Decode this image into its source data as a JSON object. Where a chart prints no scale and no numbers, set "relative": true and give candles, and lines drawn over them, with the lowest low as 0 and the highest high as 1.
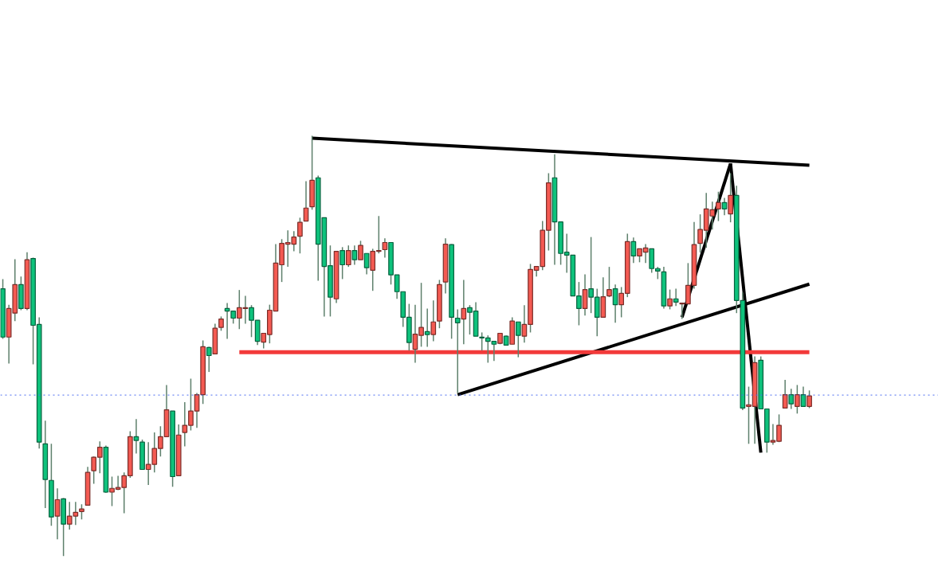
{
  "chart_data": {
    "type": "candlestick",
    "relative": true,
    "grid": false,
    "categories": [
      null,
      null,
      null,
      null,
      null,
      null,
      null,
      null,
      null,
      null,
      null,
      null,
      null,
      null,
      null,
      null,
      null,
      null,
      null,
      null,
      null,
      null,
      null,
      null,
      null,
      null,
      null,
      null,
      null,
      null,
      null,
      null,
      null,
      null,
      null,
      null,
      null,
      null,
      null,
      null,
      null,
      null,
      null,
      null,
      null,
      null,
      null,
      null,
      null,
      null,
      null,
      null,
      null,
      null,
      null,
      null,
      null,
      null,
      null,
      null,
      null,
      null,
      null,
      null,
      null,
      null,
      null,
      null,
      null,
      null,
      null,
      null,
      null,
      null,
      null,
      null,
      null,
      null,
      null,
      null,
      null,
      null,
      null,
      null,
      null,
      null,
      null,
      null,
      null,
      null,
      null,
      null,
      null,
      null,
      null,
      null,
      null,
      null,
      null,
      null,
      null,
      null,
      null,
      null,
      null,
      null,
      null,
      null,
      null,
      null,
      null,
      null,
      null,
      null,
      null,
      null,
      null,
      null,
      null,
      null,
      null,
      null,
      null,
      null,
      null,
      null,
      null,
      null,
      null,
      null,
      null,
      null,
      null,
      null
    ],
    "ohlc": [
      [
        0.636,
        0.659,
        0.517,
        0.521
      ],
      [
        0.521,
        0.598,
        0.458,
        0.589
      ],
      [
        0.578,
        0.706,
        0.559,
        0.646
      ],
      [
        0.646,
        0.665,
        0.585,
        0.589
      ],
      [
        0.589,
        0.723,
        0.585,
        0.705
      ],
      [
        0.708,
        0.71,
        0.456,
        0.549
      ],
      [
        0.551,
        0.568,
        0.256,
        0.271
      ],
      [
        0.267,
        0.322,
        0.114,
        0.182
      ],
      [
        0.18,
        0.267,
        0.072,
        0.093
      ],
      [
        0.095,
        0.161,
        0.04,
        0.134
      ],
      [
        0.136,
        0.138,
        0,
        0.076
      ],
      [
        0.076,
        0.129,
        0.063,
        0.095
      ],
      [
        0.095,
        0.129,
        0.074,
        0.104
      ],
      [
        0.106,
        0.123,
        0.087,
        0.112
      ],
      [
        0.121,
        0.212,
        0.121,
        0.199
      ],
      [
        0.203,
        0.237,
        0.172,
        0.235
      ],
      [
        0.235,
        0.273,
        0.197,
        0.259
      ],
      [
        0.259,
        0.263,
        0.15,
        0.152
      ],
      [
        0.152,
        0.189,
        0.119,
        0.161
      ],
      [
        0.159,
        0.191,
        0.157,
        0.163
      ],
      [
        0.163,
        0.199,
        0.102,
        0.191
      ],
      [
        0.191,
        0.297,
        0.186,
        0.284
      ],
      [
        0.284,
        0.326,
        0.244,
        0.275
      ],
      [
        0.271,
        0.277,
        0.205,
        0.206
      ],
      [
        0.206,
        0.271,
        0.169,
        0.218
      ],
      [
        0.218,
        0.294,
        0.199,
        0.256
      ],
      [
        0.256,
        0.309,
        0.237,
        0.284
      ],
      [
        0.284,
        0.407,
        0.284,
        0.348
      ],
      [
        0.345,
        0.345,
        0.165,
        0.189
      ],
      [
        0.191,
        0.313,
        0.191,
        0.288
      ],
      [
        0.294,
        0.366,
        0.261,
        0.311
      ],
      [
        0.311,
        0.422,
        0.299,
        0.345
      ],
      [
        0.345,
        0.388,
        0.305,
        0.384
      ],
      [
        0.384,
        0.513,
        0.362,
        0.498
      ],
      [
        0.496,
        0.498,
        0.438,
        0.477
      ],
      [
        0.481,
        0.553,
        0.481,
        0.542
      ],
      [
        0.544,
        0.57,
        0.536,
        0.564
      ],
      [
        0.589,
        0.602,
        0.517,
        0.583
      ],
      [
        0.583,
        0.583,
        0.553,
        0.566
      ],
      [
        0.566,
        0.633,
        0.54,
        0.591
      ],
      [
        0.589,
        0.619,
        0.553,
        0.591
      ],
      [
        0.591,
        0.597,
        0.521,
        0.561
      ],
      [
        0.561,
        0.561,
        0.502,
        0.511
      ],
      [
        0.509,
        0.53,
        0.494,
        0.53
      ],
      [
        0.527,
        0.598,
        0.506,
        0.585
      ],
      [
        0.583,
        0.742,
        0.583,
        0.697
      ],
      [
        0.693,
        0.754,
        0.652,
        0.744
      ],
      [
        0.742,
        0.775,
        0.688,
        0.746
      ],
      [
        0.742,
        0.773,
        0.725,
        0.759
      ],
      [
        0.761,
        0.805,
        0.72,
        0.794
      ],
      [
        0.797,
        0.892,
        0.797,
        0.828
      ],
      [
        0.831,
        1,
        0.824,
        0.894
      ],
      [
        0.9,
        0.905,
        0.655,
        0.742
      ],
      [
        0.805,
        0.805,
        0.57,
        0.689
      ],
      [
        0.691,
        0.739,
        0.57,
        0.616
      ],
      [
        0.612,
        0.725,
        0.602,
        0.725
      ],
      [
        0.727,
        0.735,
        0.659,
        0.693
      ],
      [
        0.693,
        0.739,
        0.688,
        0.727
      ],
      [
        0.727,
        0.739,
        0.693,
        0.705
      ],
      [
        0.705,
        0.75,
        0.705,
        0.739
      ],
      [
        0.72,
        0.72,
        0.67,
        0.686
      ],
      [
        0.68,
        0.731,
        0.631,
        0.725
      ],
      [
        0.725,
        0.809,
        0.72,
        0.727
      ],
      [
        0.729,
        0.756,
        0.71,
        0.746
      ],
      [
        0.746,
        0.746,
        0.646,
        0.669
      ],
      [
        0.669,
        0.669,
        0.612,
        0.629
      ],
      [
        0.629,
        0.629,
        0.545,
        0.568
      ],
      [
        0.568,
        0.6,
        0.489,
        0.508
      ],
      [
        0.492,
        0.598,
        0.46,
        0.528
      ],
      [
        0.525,
        0.65,
        0.498,
        0.544
      ],
      [
        0.534,
        0.589,
        0.498,
        0.527
      ],
      [
        0.527,
        0.608,
        0.511,
        0.557
      ],
      [
        0.559,
        0.657,
        0.542,
        0.646
      ],
      [
        0.652,
        0.756,
        0.625,
        0.742
      ],
      [
        0.741,
        0.742,
        0.517,
        0.568
      ],
      [
        0.566,
        0.587,
        0.388,
        0.555
      ],
      [
        0.564,
        0.657,
        0.504,
        0.589
      ],
      [
        0.591,
        0.597,
        0.527,
        0.58
      ],
      [
        0.583,
        0.604,
        0.523,
        0.523
      ],
      [
        0.521,
        0.532,
        0.489,
        0.519
      ],
      [
        0.519,
        0.525,
        0.46,
        0.511
      ],
      [
        0.511,
        0.511,
        0.464,
        0.504
      ],
      [
        0.506,
        0.53,
        0.504,
        0.53
      ],
      [
        0.523,
        0.525,
        0.502,
        0.502
      ],
      [
        0.504,
        0.568,
        0.504,
        0.559
      ],
      [
        0.557,
        0.557,
        0.473,
        0.525
      ],
      [
        0.523,
        0.597,
        0.508,
        0.551
      ],
      [
        0.551,
        0.695,
        0.532,
        0.682
      ],
      [
        0.68,
        0.689,
        0.665,
        0.689
      ],
      [
        0.689,
        0.797,
        0.68,
        0.775
      ],
      [
        0.775,
        0.911,
        0.727,
        0.888
      ],
      [
        0.9,
        0.956,
        0.693,
        0.795
      ],
      [
        0.795,
        0.795,
        0.693,
        0.72
      ],
      [
        0.723,
        0.767,
        0.674,
        0.716
      ],
      [
        0.716,
        0.716,
        0.619,
        0.619
      ],
      [
        0.619,
        0.652,
        0.549,
        0.589
      ],
      [
        0.589,
        0.67,
        0.572,
        0.634
      ],
      [
        0.636,
        0.759,
        0.578,
        0.616
      ],
      [
        0.616,
        0.636,
        0.523,
        0.568
      ],
      [
        0.568,
        0.663,
        0.568,
        0.617
      ],
      [
        0.619,
        0.688,
        0.616,
        0.634
      ],
      [
        0.636,
        0.646,
        0.555,
        0.598
      ],
      [
        0.598,
        0.64,
        0.568,
        0.625
      ],
      [
        0.625,
        0.767,
        0.616,
        0.748
      ],
      [
        0.748,
        0.758,
        0.697,
        0.714
      ],
      [
        0.714,
        0.731,
        0.699,
        0.731
      ],
      [
        0.723,
        0.742,
        0.697,
        0.733
      ],
      [
        0.731,
        0.731,
        0.674,
        0.684
      ],
      [
        0.684,
        0.688,
        0.659,
        0.678
      ],
      [
        0.676,
        0.688,
        0.589,
        0.595
      ],
      [
        0.595,
        0.634,
        0.587,
        0.612
      ],
      [
        0.612,
        0.636,
        0.595,
        0.604
      ],
      [
        0.6,
        0.602,
        0.564,
        0.602
      ],
      [
        0.6,
        0.697,
        0.6,
        0.644
      ],
      [
        0.644,
        0.795,
        0.636,
        0.741
      ],
      [
        0.744,
        0.813,
        0.722,
        0.777
      ],
      [
        0.775,
        0.864,
        0.733,
        0.826
      ],
      [
        0.809,
        0.843,
        0.777,
        0.824
      ],
      [
        0.826,
        0.867,
        0.797,
        0.841
      ],
      [
        0.841,
        0.852,
        0.811,
        0.826
      ],
      [
        0.814,
        0.911,
        0.794,
        0.858
      ],
      [
        0.858,
        0.881,
        0.578,
        0.608
      ],
      [
        0.608,
        0.627,
        0.347,
        0.352
      ],
      [
        0.356,
        0.403,
        0.267,
        0.36
      ],
      [
        0.356,
        0.475,
        0.267,
        0.46
      ],
      [
        0.466,
        0.475,
        0.35,
        0.35
      ],
      [
        0.35,
        0.35,
        0.246,
        0.271
      ],
      [
        0.271,
        0.314,
        0.265,
        0.275
      ],
      [
        0.273,
        0.337,
        0.271,
        0.311
      ],
      [
        0.352,
        0.419,
        0.352,
        0.384
      ],
      [
        0.384,
        0.398,
        0.35,
        0.362
      ],
      [
        0.356,
        0.407,
        0.339,
        0.384
      ],
      [
        0.384,
        0.403,
        0.356,
        0.356
      ],
      [
        0.356,
        0.394,
        0.352,
        0.381
      ]
    ],
    "colors": [
      "#0ec27c",
      "#f45a52",
      "#f45a52",
      "#0ec27c",
      "#f45a52",
      "#0ec27c",
      "#0ec27c",
      "#0ec27c",
      "#0ec27c",
      "#f45a52",
      "#0ec27c",
      "#f45a52",
      "#f45a52",
      "#f45a52",
      "#f45a52",
      "#f45a52",
      "#f45a52",
      "#0ec27c",
      "#f45a52",
      "#f45a52",
      "#f45a52",
      "#f45a52",
      "#0ec27c",
      "#0ec27c",
      "#f45a52",
      "#f45a52",
      "#f45a52",
      "#f45a52",
      "#0ec27c",
      "#f45a52",
      "#f45a52",
      "#f45a52",
      "#f45a52",
      "#f45a52",
      "#0ec27c",
      "#f45a52",
      "#f45a52",
      "#0ec27c",
      "#0ec27c",
      "#f45a52",
      "#f45a52",
      "#0ec27c",
      "#0ec27c",
      "#f45a52",
      "#f45a52",
      "#f45a52",
      "#f45a52",
      "#f45a52",
      "#f45a52",
      "#f45a52",
      "#f45a52",
      "#f45a52",
      "#0ec27c",
      "#0ec27c",
      "#0ec27c",
      "#f45a52",
      "#0ec27c",
      "#f45a52",
      "#0ec27c",
      "#f45a52",
      "#0ec27c",
      "#f45a52",
      "#f45a52",
      "#f45a52",
      "#0ec27c",
      "#0ec27c",
      "#0ec27c",
      "#0ec27c",
      "#f45a52",
      "#f45a52",
      "#0ec27c",
      "#f45a52",
      "#f45a52",
      "#f45a52",
      "#0ec27c",
      "#0ec27c",
      "#f45a52",
      "#0ec27c",
      "#0ec27c",
      "#0ec27c",
      "#0ec27c",
      "#0ec27c",
      "#f45a52",
      "#0ec27c",
      "#f45a52",
      "#0ec27c",
      "#f45a52",
      "#f45a52",
      "#f45a52",
      "#f45a52",
      "#f45a52",
      "#0ec27c",
      "#0ec27c",
      "#0ec27c",
      "#0ec27c",
      "#0ec27c",
      "#f45a52",
      "#0ec27c",
      "#0ec27c",
      "#f45a52",
      "#f45a52",
      "#0ec27c",
      "#f45a52",
      "#f45a52",
      "#0ec27c",
      "#f45a52",
      "#f45a52",
      "#0ec27c",
      "#0ec27c",
      "#0ec27c",
      "#f45a52",
      "#0ec27c",
      "#f45a52",
      "#f45a52",
      "#f45a52",
      "#f45a52",
      "#f45a52",
      "#f45a52",
      "#f45a52",
      "#0ec27c",
      "#f45a52",
      "#0ec27c",
      "#0ec27c",
      "#f45a52",
      "#f45a52",
      "#0ec27c",
      "#0ec27c",
      "#f45a52",
      "#f45a52",
      "#f45a52",
      "#0ec27c",
      "#f45a52",
      "#0ec27c",
      "#f45a52"
    ],
    "series": [
      {
        "type": "line",
        "color": "#000000",
        "values": [
          null,
          null,
          null,
          null,
          null,
          null,
          null,
          null,
          null,
          null,
          null,
          null,
          null,
          null,
          null,
          null,
          null,
          null,
          null,
          null,
          null,
          null,
          null,
          null,
          null,
          null,
          null,
          null,
          null,
          null,
          null,
          null,
          null,
          null,
          null,
          null,
          null,
          null,
          null,
          null,
          null,
          null,
          null,
          null,
          null,
          null,
          null,
          null,
          null,
          null,
          null,
          0.994,
          null,
          null,
          null,
          null,
          null,
          null,
          null,
          null,
          null,
          null,
          null,
          null,
          null,
          null,
          null,
          null,
          null,
          null,
          null,
          null,
          null,
          null,
          null,
          null,
          null,
          null,
          null,
          null,
          null,
          null,
          null,
          null,
          null,
          null,
          null,
          null,
          null,
          null,
          null,
          null,
          null,
          null,
          null,
          null,
          null,
          null,
          null,
          null,
          null,
          null,
          null,
          null,
          null,
          null,
          null,
          null,
          null,
          null,
          null,
          null,
          null,
          null,
          null,
          null,
          null,
          null,
          null,
          null,
          null,
          null,
          null,
          null,
          null,
          null,
          null,
          null,
          null,
          null,
          null,
          null,
          null,
          0.93
        ]
      },
      {
        "type": "line",
        "color": "#000000",
        "values": [
          null,
          null,
          null,
          null,
          null,
          null,
          null,
          null,
          null,
          null,
          null,
          null,
          null,
          null,
          null,
          null,
          null,
          null,
          null,
          null,
          null,
          null,
          null,
          null,
          null,
          null,
          null,
          null,
          null,
          null,
          null,
          null,
          null,
          null,
          null,
          null,
          null,
          null,
          null,
          null,
          null,
          null,
          null,
          null,
          null,
          null,
          null,
          null,
          null,
          null,
          null,
          null,
          null,
          null,
          null,
          null,
          null,
          null,
          null,
          null,
          null,
          null,
          null,
          null,
          null,
          null,
          null,
          null,
          null,
          null,
          null,
          null,
          null,
          null,
          null,
          0.384,
          null,
          null,
          null,
          null,
          null,
          null,
          null,
          null,
          null,
          null,
          null,
          null,
          null,
          null,
          null,
          null,
          null,
          null,
          null,
          null,
          null,
          null,
          null,
          null,
          null,
          null,
          null,
          null,
          null,
          null,
          null,
          null,
          null,
          null,
          null,
          null,
          null,
          null,
          null,
          null,
          null,
          null,
          null,
          null,
          null,
          null,
          null,
          null,
          null,
          null,
          null,
          null,
          null,
          null,
          null,
          null,
          null,
          0.647
        ]
      },
      {
        "type": "line",
        "color": "#000000",
        "values": [
          null,
          null,
          null,
          null,
          null,
          null,
          null,
          null,
          null,
          null,
          null,
          null,
          null,
          null,
          null,
          null,
          null,
          null,
          null,
          null,
          null,
          null,
          null,
          null,
          null,
          null,
          null,
          null,
          null,
          null,
          null,
          null,
          null,
          null,
          null,
          null,
          null,
          null,
          null,
          null,
          null,
          null,
          null,
          null,
          null,
          null,
          null,
          null,
          null,
          null,
          null,
          null,
          null,
          null,
          null,
          null,
          null,
          null,
          null,
          null,
          null,
          null,
          null,
          null,
          null,
          null,
          null,
          null,
          null,
          null,
          null,
          null,
          null,
          null,
          null,
          null,
          null,
          null,
          null,
          null,
          null,
          null,
          null,
          null,
          null,
          null,
          null,
          null,
          null,
          null,
          null,
          null,
          null,
          null,
          null,
          null,
          null,
          null,
          null,
          null,
          null,
          null,
          null,
          null,
          null,
          null,
          null,
          null,
          null,
          null,
          null,
          null,
          0.568,
          null,
          null,
          null,
          null,
          null,
          null,
          null,
          0.934,
          null,
          null,
          null,
          null,
          null,
          null,
          null,
          null,
          null,
          null,
          null,
          null,
          null
        ]
      },
      {
        "type": "line",
        "color": "#000000",
        "values": [
          null,
          null,
          null,
          null,
          null,
          null,
          null,
          null,
          null,
          null,
          null,
          null,
          null,
          null,
          null,
          null,
          null,
          null,
          null,
          null,
          null,
          null,
          null,
          null,
          null,
          null,
          null,
          null,
          null,
          null,
          null,
          null,
          null,
          null,
          null,
          null,
          null,
          null,
          null,
          null,
          null,
          null,
          null,
          null,
          null,
          null,
          null,
          null,
          null,
          null,
          null,
          null,
          null,
          null,
          null,
          null,
          null,
          null,
          null,
          null,
          null,
          null,
          null,
          null,
          null,
          null,
          null,
          null,
          null,
          null,
          null,
          null,
          null,
          null,
          null,
          null,
          null,
          null,
          null,
          null,
          null,
          null,
          null,
          null,
          null,
          null,
          null,
          null,
          null,
          null,
          null,
          null,
          null,
          null,
          null,
          null,
          null,
          null,
          null,
          null,
          null,
          null,
          null,
          null,
          null,
          null,
          null,
          null,
          null,
          null,
          null,
          null,
          null,
          null,
          null,
          null,
          null,
          null,
          null,
          null,
          0.934,
          null,
          null,
          null,
          null,
          0.246,
          null,
          null,
          null,
          null,
          null,
          null,
          null,
          null
        ]
      },
      {
        "type": "line",
        "color": "#f23a3a",
        "values": [
          null,
          null,
          null,
          null,
          null,
          null,
          null,
          null,
          null,
          null,
          null,
          null,
          null,
          null,
          null,
          null,
          null,
          null,
          null,
          null,
          null,
          null,
          null,
          null,
          null,
          null,
          null,
          null,
          null,
          null,
          null,
          null,
          null,
          null,
          null,
          null,
          null,
          null,
          null,
          0.485,
          null,
          null,
          null,
          null,
          null,
          null,
          null,
          null,
          null,
          null,
          null,
          null,
          null,
          null,
          null,
          null,
          null,
          null,
          null,
          null,
          null,
          null,
          null,
          null,
          null,
          null,
          null,
          null,
          null,
          null,
          null,
          null,
          null,
          null,
          null,
          null,
          null,
          null,
          null,
          null,
          null,
          null,
          null,
          null,
          null,
          null,
          null,
          null,
          null,
          null,
          null,
          null,
          null,
          null,
          null,
          null,
          null,
          null,
          null,
          null,
          null,
          null,
          null,
          null,
          null,
          null,
          null,
          null,
          null,
          null,
          null,
          null,
          null,
          null,
          null,
          null,
          null,
          null,
          null,
          null,
          null,
          null,
          null,
          null,
          null,
          null,
          null,
          null,
          null,
          null,
          null,
          null,
          null,
          0.485
        ]
      }
    ],
    "ref_lines": [
      {
        "axis": "y",
        "value": 0.383,
        "color": "#4a6cf0",
        "line_style": "dotted"
      }
    ]
  }
}
